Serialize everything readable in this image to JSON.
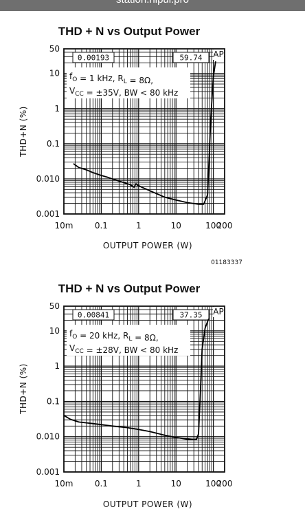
{
  "header": {
    "title": "station.nipui.pro"
  },
  "chart_data": [
    {
      "type": "line",
      "title": "THD + N vs Output Power",
      "xlabel": "OUTPUT POWER (W)",
      "ylabel": "THD+N (%)",
      "x_scale": "log",
      "y_scale": "log",
      "xlim": [
        0.01,
        200
      ],
      "ylim": [
        0.001,
        50
      ],
      "x_ticks": [
        "10m",
        "0.1",
        "1",
        "10",
        "100",
        "200"
      ],
      "x_tick_values": [
        0.01,
        0.1,
        1,
        10,
        100,
        200
      ],
      "y_ticks": [
        "50",
        "10",
        "1",
        "0.1",
        "0.010",
        "0.001"
      ],
      "y_tick_values": [
        50,
        10,
        1,
        0.1,
        0.01,
        0.001
      ],
      "grid": true,
      "readout_left": "0.00193",
      "readout_right": "59.74",
      "ap_mark": "AP",
      "conditions_line1": {
        "prefix": "f",
        "prefix_sub": "O",
        "mid": " = 1 kHz, R",
        "mid_sub": "L",
        "suffix": " = 8Ω,"
      },
      "conditions_line2": {
        "prefix": "V",
        "prefix_sub": "CC",
        "suffix": " = ±35V, BW < 80 kHz"
      },
      "figure_id": "01183337",
      "series": [
        {
          "x": [
            0.018,
            0.025,
            0.04,
            0.06,
            0.1,
            0.15,
            0.25,
            0.4,
            0.6,
            0.75,
            0.85,
            0.95,
            1.2,
            1.8,
            3,
            5,
            10,
            20,
            40,
            55,
            70,
            85,
            100,
            115
          ],
          "y": [
            0.027,
            0.021,
            0.018,
            0.015,
            0.0125,
            0.011,
            0.0092,
            0.0078,
            0.0068,
            0.0058,
            0.0072,
            0.0066,
            0.0058,
            0.0048,
            0.0038,
            0.003,
            0.0025,
            0.0021,
            0.0019,
            0.0019,
            0.0035,
            0.5,
            8,
            22
          ]
        }
      ]
    },
    {
      "type": "line",
      "title": "THD + N vs Output Power",
      "xlabel": "OUTPUT POWER (W)",
      "ylabel": "THD+N (%)",
      "x_scale": "log",
      "y_scale": "log",
      "xlim": [
        0.01,
        200
      ],
      "ylim": [
        0.001,
        50
      ],
      "x_ticks": [
        "10m",
        "0.1",
        "1",
        "10",
        "100",
        "200"
      ],
      "x_tick_values": [
        0.01,
        0.1,
        1,
        10,
        100,
        200
      ],
      "y_ticks": [
        "50",
        "10",
        "1",
        "0.1",
        "0.010",
        "0.001"
      ],
      "y_tick_values": [
        50,
        10,
        1,
        0.1,
        0.01,
        0.001
      ],
      "grid": true,
      "readout_left": "0.00841",
      "readout_right": "37.35",
      "ap_mark": "AP",
      "conditions_line1": {
        "prefix": "f",
        "prefix_sub": "O",
        "mid": " = 20 kHz, R",
        "mid_sub": "L",
        "suffix": " = 8Ω,"
      },
      "conditions_line2": {
        "prefix": "V",
        "prefix_sub": "CC",
        "suffix": " = ±28V, BW < 80 kHz"
      },
      "figure_id": "",
      "series": [
        {
          "x": [
            0.01,
            0.015,
            0.025,
            0.05,
            0.1,
            0.2,
            0.5,
            1,
            2,
            5,
            10,
            20,
            30,
            35,
            40,
            45,
            50,
            60,
            75
          ],
          "y": [
            0.04,
            0.031,
            0.026,
            0.024,
            0.022,
            0.02,
            0.018,
            0.016,
            0.014,
            0.011,
            0.0095,
            0.0085,
            0.0082,
            0.0083,
            0.012,
            0.2,
            3,
            12,
            22
          ]
        }
      ]
    }
  ]
}
